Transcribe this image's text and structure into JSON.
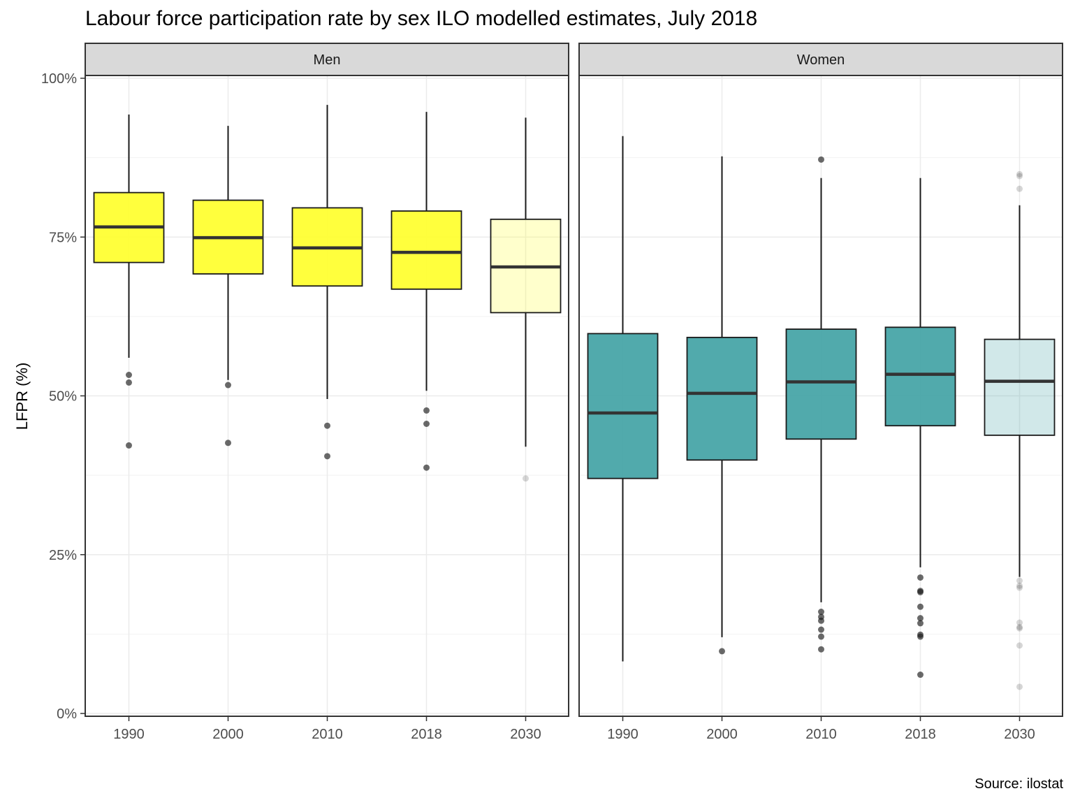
{
  "title": "Labour force participation rate by sex ILO modelled estimates, July 2018",
  "caption": "Source: ilostat",
  "chart_data": {
    "type": "boxplot",
    "title": "Labour force participation rate by sex ILO modelled estimates, July 2018",
    "ylabel": "LFPR (%)",
    "xlabel": "",
    "ylim": [
      0,
      100
    ],
    "y_ticks": [
      0,
      25,
      50,
      75,
      100
    ],
    "y_tick_labels": [
      "0%",
      "25%",
      "50%",
      "75%",
      "100%"
    ],
    "grid": true,
    "categories": [
      "1990",
      "2000",
      "2010",
      "2018",
      "2030"
    ],
    "colors": {
      "Men": "#ffff33",
      "Women": "#48a5a8"
    },
    "panels": [
      {
        "name": "Men",
        "boxes": [
          {
            "x": "1990",
            "whisker_low": 56,
            "q1": 71,
            "median": 76.6,
            "q3": 82,
            "whisker_high": 94.3,
            "outliers": [
              53.3,
              52.1,
              42.2
            ],
            "projected": false
          },
          {
            "x": "2000",
            "whisker_low": 52.5,
            "q1": 69.2,
            "median": 74.9,
            "q3": 80.8,
            "whisker_high": 92.5,
            "outliers": [
              51.7,
              42.6
            ],
            "projected": false
          },
          {
            "x": "2010",
            "whisker_low": 49.5,
            "q1": 67.3,
            "median": 73.3,
            "q3": 79.6,
            "whisker_high": 95.8,
            "outliers": [
              45.3,
              40.5
            ],
            "projected": false
          },
          {
            "x": "2018",
            "whisker_low": 50.8,
            "q1": 66.8,
            "median": 72.6,
            "q3": 79.1,
            "whisker_high": 94.7,
            "outliers": [
              47.7,
              45.6,
              38.7
            ],
            "projected": false
          },
          {
            "x": "2030",
            "whisker_low": 42,
            "q1": 63.1,
            "median": 70.3,
            "q3": 77.8,
            "whisker_high": 93.8,
            "outliers": [
              37
            ],
            "projected": true
          }
        ]
      },
      {
        "name": "Women",
        "boxes": [
          {
            "x": "1990",
            "whisker_low": 8.2,
            "q1": 37,
            "median": 47.3,
            "q3": 59.8,
            "whisker_high": 90.9,
            "outliers": [],
            "projected": false
          },
          {
            "x": "2000",
            "whisker_low": 12,
            "q1": 39.9,
            "median": 50.4,
            "q3": 59.2,
            "whisker_high": 87.7,
            "outliers": [
              9.8
            ],
            "projected": false
          },
          {
            "x": "2010",
            "whisker_low": 17.5,
            "q1": 43.2,
            "median": 52.2,
            "q3": 60.5,
            "whisker_high": 84.3,
            "outliers": [
              87.2,
              16,
              15.2,
              14.6,
              13.2,
              12.1,
              10.1
            ],
            "projected": false
          },
          {
            "x": "2018",
            "whisker_low": 23,
            "q1": 45.3,
            "median": 53.4,
            "q3": 60.8,
            "whisker_high": 84.3,
            "outliers": [
              21.4,
              19.3,
              19.1,
              16.8,
              15,
              14.2,
              12.4,
              12.1,
              6.1
            ],
            "projected": false
          },
          {
            "x": "2030",
            "whisker_low": 21.5,
            "q1": 43.8,
            "median": 52.3,
            "q3": 58.9,
            "whisker_high": 80,
            "outliers": [
              84.9,
              84.6,
              82.6,
              20.9,
              20.1,
              19.8,
              14.3,
              13.6,
              13.4,
              10.7,
              4.2
            ],
            "projected": true
          }
        ]
      }
    ]
  }
}
